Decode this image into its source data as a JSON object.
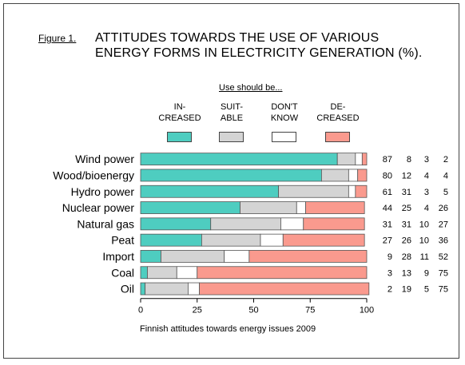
{
  "figure_label": "Figure 1.",
  "title_line1": "ATTITUDES TOWARDS THE USE OF VARIOUS",
  "title_line2": "ENERGY FORMS IN ELECTRICITY GENERATION (%).",
  "legend": {
    "heading": "Use should be...",
    "items": [
      {
        "line1": "IN-",
        "line2": "CREASED",
        "color": "#4ecdc0"
      },
      {
        "line1": "SUIT-",
        "line2": "ABLE",
        "color": "#d4d4d4"
      },
      {
        "line1": "DON'T",
        "line2": "KNOW",
        "color": "#ffffff"
      },
      {
        "line1": "DE-",
        "line2": "CREASED",
        "color": "#fa9a8e"
      }
    ]
  },
  "footnote": "Finnish attitudes towards energy issues 2009",
  "chart_data": {
    "type": "bar",
    "orientation": "horizontal",
    "stacked": true,
    "categories": [
      "Wind power",
      "Wood/bioenergy",
      "Hydro power",
      "Nuclear power",
      "Natural gas",
      "Peat",
      "Import",
      "Coal",
      "Oil"
    ],
    "series": [
      {
        "name": "IN-CREASED",
        "color": "#4ecdc0",
        "values": [
          87,
          80,
          61,
          44,
          31,
          27,
          9,
          3,
          2
        ]
      },
      {
        "name": "SUIT-ABLE",
        "color": "#d4d4d4",
        "values": [
          8,
          12,
          31,
          25,
          31,
          26,
          28,
          13,
          19
        ]
      },
      {
        "name": "DON'T KNOW",
        "color": "#ffffff",
        "values": [
          3,
          4,
          3,
          4,
          10,
          10,
          11,
          9,
          5
        ]
      },
      {
        "name": "DE-CREASED",
        "color": "#fa9a8e",
        "values": [
          2,
          4,
          5,
          26,
          27,
          36,
          52,
          75,
          75
        ]
      }
    ],
    "xlim": [
      0,
      100
    ],
    "xticks": [
      0,
      25,
      50,
      75,
      100
    ],
    "grid": false,
    "legend_position": "top"
  }
}
